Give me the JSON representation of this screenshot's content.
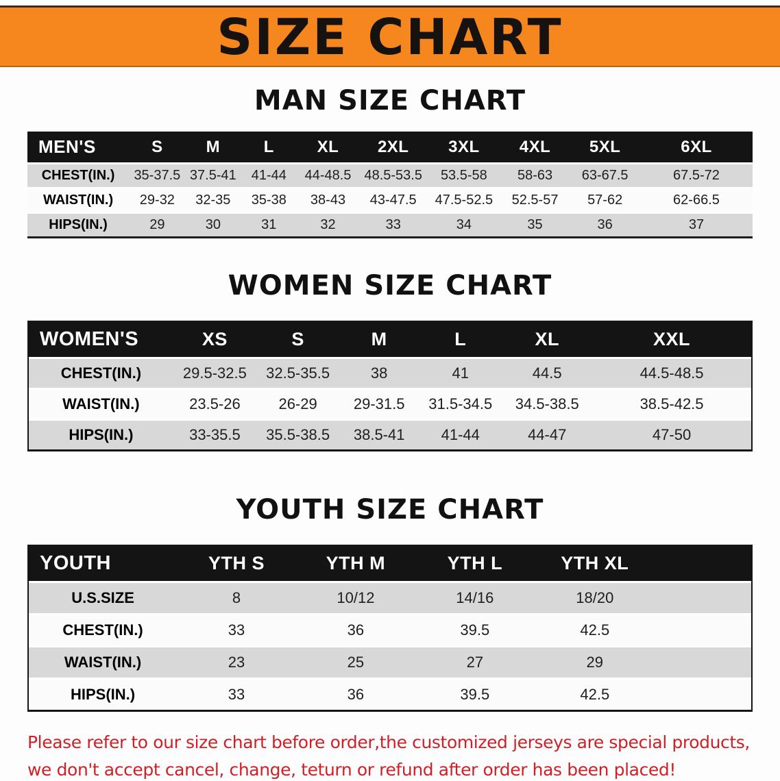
{
  "banner": {
    "title": "SIZE CHART"
  },
  "sections": [
    {
      "heading": "MAN SIZE CHART",
      "table": {
        "header": [
          "MEN'S",
          "S",
          "M",
          "L",
          "XL",
          "2XL",
          "3XL",
          "4XL",
          "5XL",
          "6XL"
        ],
        "rows": [
          [
            "CHEST(IN.)",
            "35-37.5",
            "37.5-41",
            "41-44",
            "44-48.5",
            "48.5-53.5",
            "53.5-58",
            "58-63",
            "63-67.5",
            "67.5-72"
          ],
          [
            "WAIST(IN.)",
            "29-32",
            "32-35",
            "35-38",
            "38-43",
            "43-47.5",
            "47.5-52.5",
            "52.5-57",
            "57-62",
            "62-66.5"
          ],
          [
            "HIPS(IN.)",
            "29",
            "30",
            "31",
            "32",
            "33",
            "34",
            "35",
            "36",
            "37"
          ]
        ]
      }
    },
    {
      "heading": "WOMEN SIZE CHART",
      "table": {
        "header": [
          "WOMEN'S",
          "XS",
          "S",
          "M",
          "L",
          "XL",
          "XXL"
        ],
        "rows": [
          [
            "CHEST(IN.)",
            "29.5-32.5",
            "32.5-35.5",
            "38",
            "41",
            "44.5",
            "44.5-48.5"
          ],
          [
            "WAIST(IN.)",
            "23.5-26",
            "26-29",
            "29-31.5",
            "31.5-34.5",
            "34.5-38.5",
            "38.5-42.5"
          ],
          [
            "HIPS(IN.)",
            "33-35.5",
            "35.5-38.5",
            "38.5-41",
            "41-44",
            "44-47",
            "47-50"
          ]
        ]
      }
    },
    {
      "heading": "YOUTH SIZE CHART",
      "table": {
        "header": [
          "YOUTH",
          "YTH S",
          "YTH M",
          "YTH L",
          "YTH XL"
        ],
        "rows": [
          [
            "U.S.SIZE",
            "8",
            "10/12",
            "14/16",
            "18/20"
          ],
          [
            "CHEST(IN.)",
            "33",
            "36",
            "39.5",
            "42.5"
          ],
          [
            "WAIST(IN.)",
            "23",
            "25",
            "27",
            "29"
          ],
          [
            "HIPS(IN.)",
            "33",
            "36",
            "39.5",
            "42.5"
          ]
        ]
      }
    }
  ],
  "footer": {
    "line1": "Please refer to our size chart before order,the customized jerseys are special products,",
    "line2": "we don't accept cancel, change, teturn or refund after order has been placed!"
  },
  "colors": {
    "banner_background": "#F6861E",
    "table_header_black": "#141414",
    "row_shade_gray": "#D8D8D8",
    "disclaimer_red": "#CE2127"
  }
}
